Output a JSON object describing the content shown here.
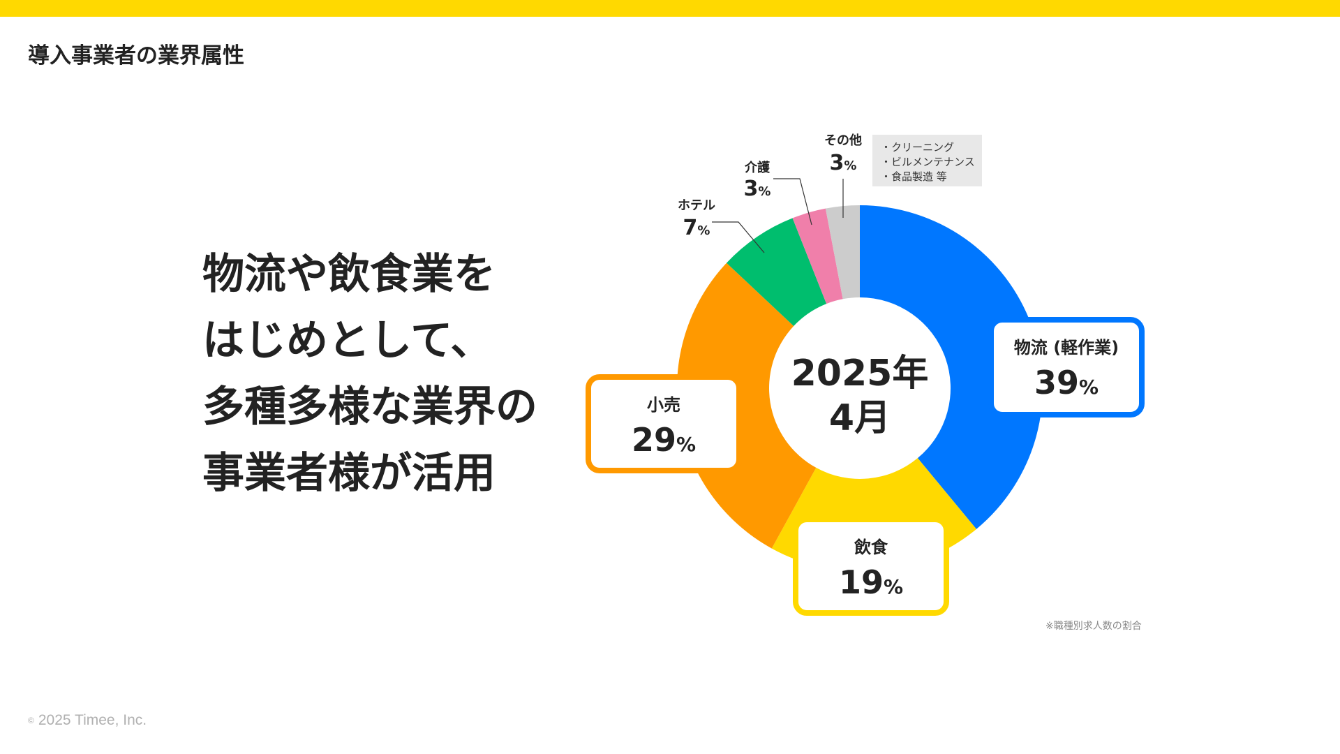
{
  "page": {
    "title": "導入事業者の業界属性",
    "headline": [
      "物流や飲食業を",
      "はじめとして、",
      "多種多様な業界の",
      "事業者様が活用"
    ],
    "copyright_symbol": "©",
    "copyright_text": "2025 Timee, Inc.",
    "brand_color": "#FFD900"
  },
  "chart_data": {
    "type": "pie",
    "center_label": [
      "2025年",
      "4月"
    ],
    "percent_unit": "%",
    "slices": [
      {
        "label": "物流 (軽作業)",
        "value": 39,
        "color": "#0077FF"
      },
      {
        "label": "飲食",
        "value": 19,
        "color": "#FFD900"
      },
      {
        "label": "小売",
        "value": 29,
        "color": "#FF9900"
      },
      {
        "label": "ホテル",
        "value": 7,
        "color": "#00BE6E"
      },
      {
        "label": "介護",
        "value": 3,
        "color": "#F07FAA"
      },
      {
        "label": "その他",
        "value": 3,
        "color": "#CCCCCC"
      }
    ],
    "other_note": [
      "・クリーニング",
      "・ビルメンテナンス",
      "・食品製造 等"
    ],
    "footnote": "※職種別求人数の割合"
  }
}
